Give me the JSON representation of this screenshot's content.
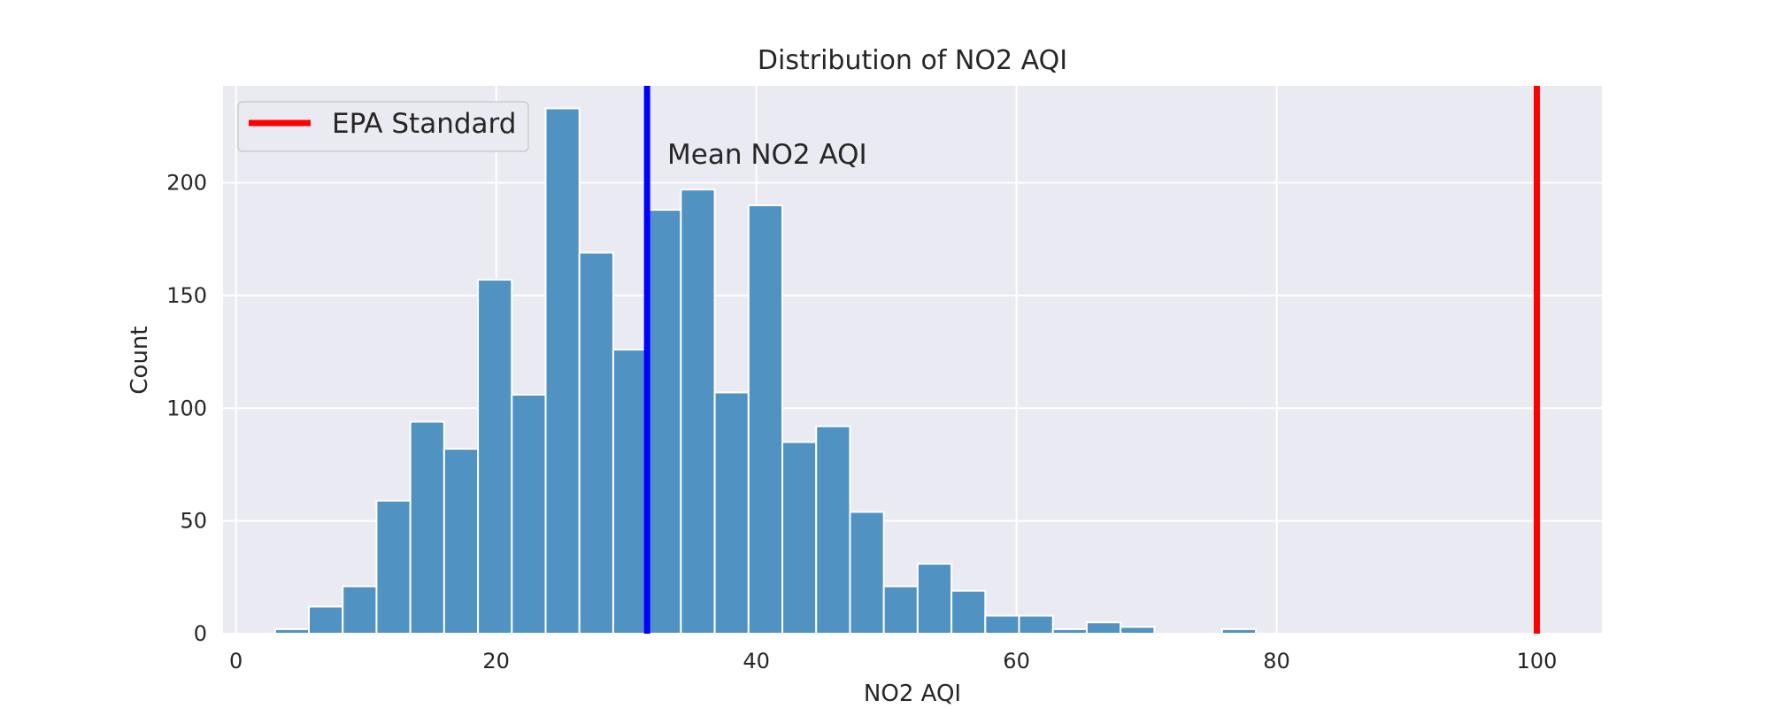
{
  "chart_data": {
    "type": "bar",
    "title": "Distribution of NO2 AQI",
    "xlabel": "NO2 AQI",
    "ylabel": "Count",
    "xlim": [
      -1,
      105
    ],
    "ylim": [
      0,
      243
    ],
    "xticks": [
      0,
      20,
      40,
      60,
      80,
      100
    ],
    "yticks": [
      0,
      50,
      100,
      150,
      200
    ],
    "grid": true,
    "legend_position": "top-left",
    "bin_width": 2.6,
    "bins": [
      {
        "x0": 3.0,
        "count": 2
      },
      {
        "x0": 5.6,
        "count": 12
      },
      {
        "x0": 8.2,
        "count": 21
      },
      {
        "x0": 10.8,
        "count": 59
      },
      {
        "x0": 13.4,
        "count": 94
      },
      {
        "x0": 16.0,
        "count": 82
      },
      {
        "x0": 18.6,
        "count": 157
      },
      {
        "x0": 21.2,
        "count": 106
      },
      {
        "x0": 23.8,
        "count": 233
      },
      {
        "x0": 26.4,
        "count": 169
      },
      {
        "x0": 29.0,
        "count": 126
      },
      {
        "x0": 31.6,
        "count": 188
      },
      {
        "x0": 34.2,
        "count": 197
      },
      {
        "x0": 36.8,
        "count": 107
      },
      {
        "x0": 39.4,
        "count": 190
      },
      {
        "x0": 42.0,
        "count": 85
      },
      {
        "x0": 44.6,
        "count": 92
      },
      {
        "x0": 47.2,
        "count": 54
      },
      {
        "x0": 49.8,
        "count": 21
      },
      {
        "x0": 52.4,
        "count": 31
      },
      {
        "x0": 55.0,
        "count": 19
      },
      {
        "x0": 57.6,
        "count": 8
      },
      {
        "x0": 60.2,
        "count": 8
      },
      {
        "x0": 62.8,
        "count": 2
      },
      {
        "x0": 65.4,
        "count": 5
      },
      {
        "x0": 68.0,
        "count": 3
      },
      {
        "x0": 70.6,
        "count": 0
      },
      {
        "x0": 73.2,
        "count": 0
      },
      {
        "x0": 75.8,
        "count": 2
      }
    ],
    "vlines": [
      {
        "x": 31.6,
        "color": "#0000ff",
        "label": "Mean NO2 AQI"
      },
      {
        "x": 100,
        "color": "#ff0000",
        "label": "EPA Standard"
      }
    ],
    "legend": [
      {
        "label": "EPA Standard",
        "color": "#ff0000"
      }
    ],
    "bar_color": "#5093c3",
    "background_color": "#eaeaf2"
  }
}
